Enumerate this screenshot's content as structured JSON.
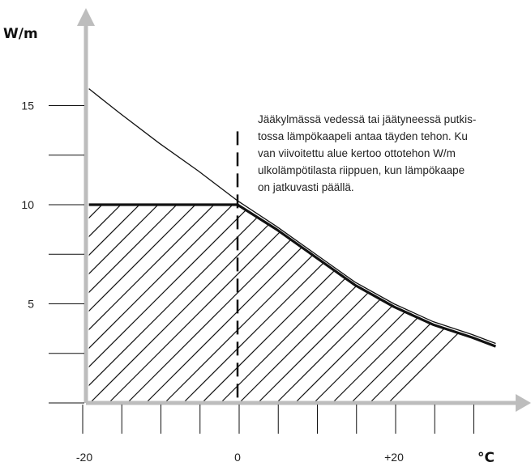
{
  "chart_data": {
    "type": "area",
    "ylabel": "W/m",
    "xlabel": "°C",
    "xlim": [
      -20,
      40
    ],
    "ylim": [
      0,
      18
    ],
    "x_ticks": [
      -20,
      -15,
      -10,
      -5,
      0,
      5,
      10,
      15,
      20,
      25,
      30
    ],
    "x_tick_labels": [
      {
        "value": -20,
        "label": "-20"
      },
      {
        "value": 0,
        "label": "0"
      },
      {
        "value": 20,
        "label": "+20"
      }
    ],
    "y_ticks": [
      2.5,
      5,
      7.5,
      10,
      12.5,
      15
    ],
    "y_tick_labels": [
      {
        "value": 5,
        "label": "5"
      },
      {
        "value": 10,
        "label": "10"
      },
      {
        "value": 15,
        "label": "15"
      }
    ],
    "series": [
      {
        "style": "thin-line",
        "x": [
          -19,
          -15,
          -10,
          -5,
          0,
          5,
          10,
          15,
          20,
          25,
          30,
          33
        ],
        "y": [
          15.85,
          14.6,
          13.1,
          11.7,
          10.2,
          8.9,
          7.5,
          6.1,
          5.0,
          4.1,
          3.45,
          3.0
        ]
      },
      {
        "style": "thick-line-hatched-area",
        "x": [
          -19,
          -10,
          0,
          5,
          10,
          15,
          20,
          25,
          30,
          33
        ],
        "y": [
          10,
          10,
          10,
          8.75,
          7.35,
          5.95,
          4.85,
          3.95,
          3.3,
          2.85
        ]
      }
    ],
    "reference_line": {
      "x": 0,
      "style": "dashed",
      "y_top": 13.7
    },
    "annotation": [
      "Jääkylmässä vedessä tai jäätyneessä putkis-",
      "tossa lämpökaapeli antaa täyden tehon. Ku",
      "van viivoitettu alue kertoo ottotehon W/m",
      "ulkolämpötilasta riippuen, kun lämpökaape",
      "on jatkuvasti päällä."
    ],
    "grid": false,
    "legend": "none"
  }
}
